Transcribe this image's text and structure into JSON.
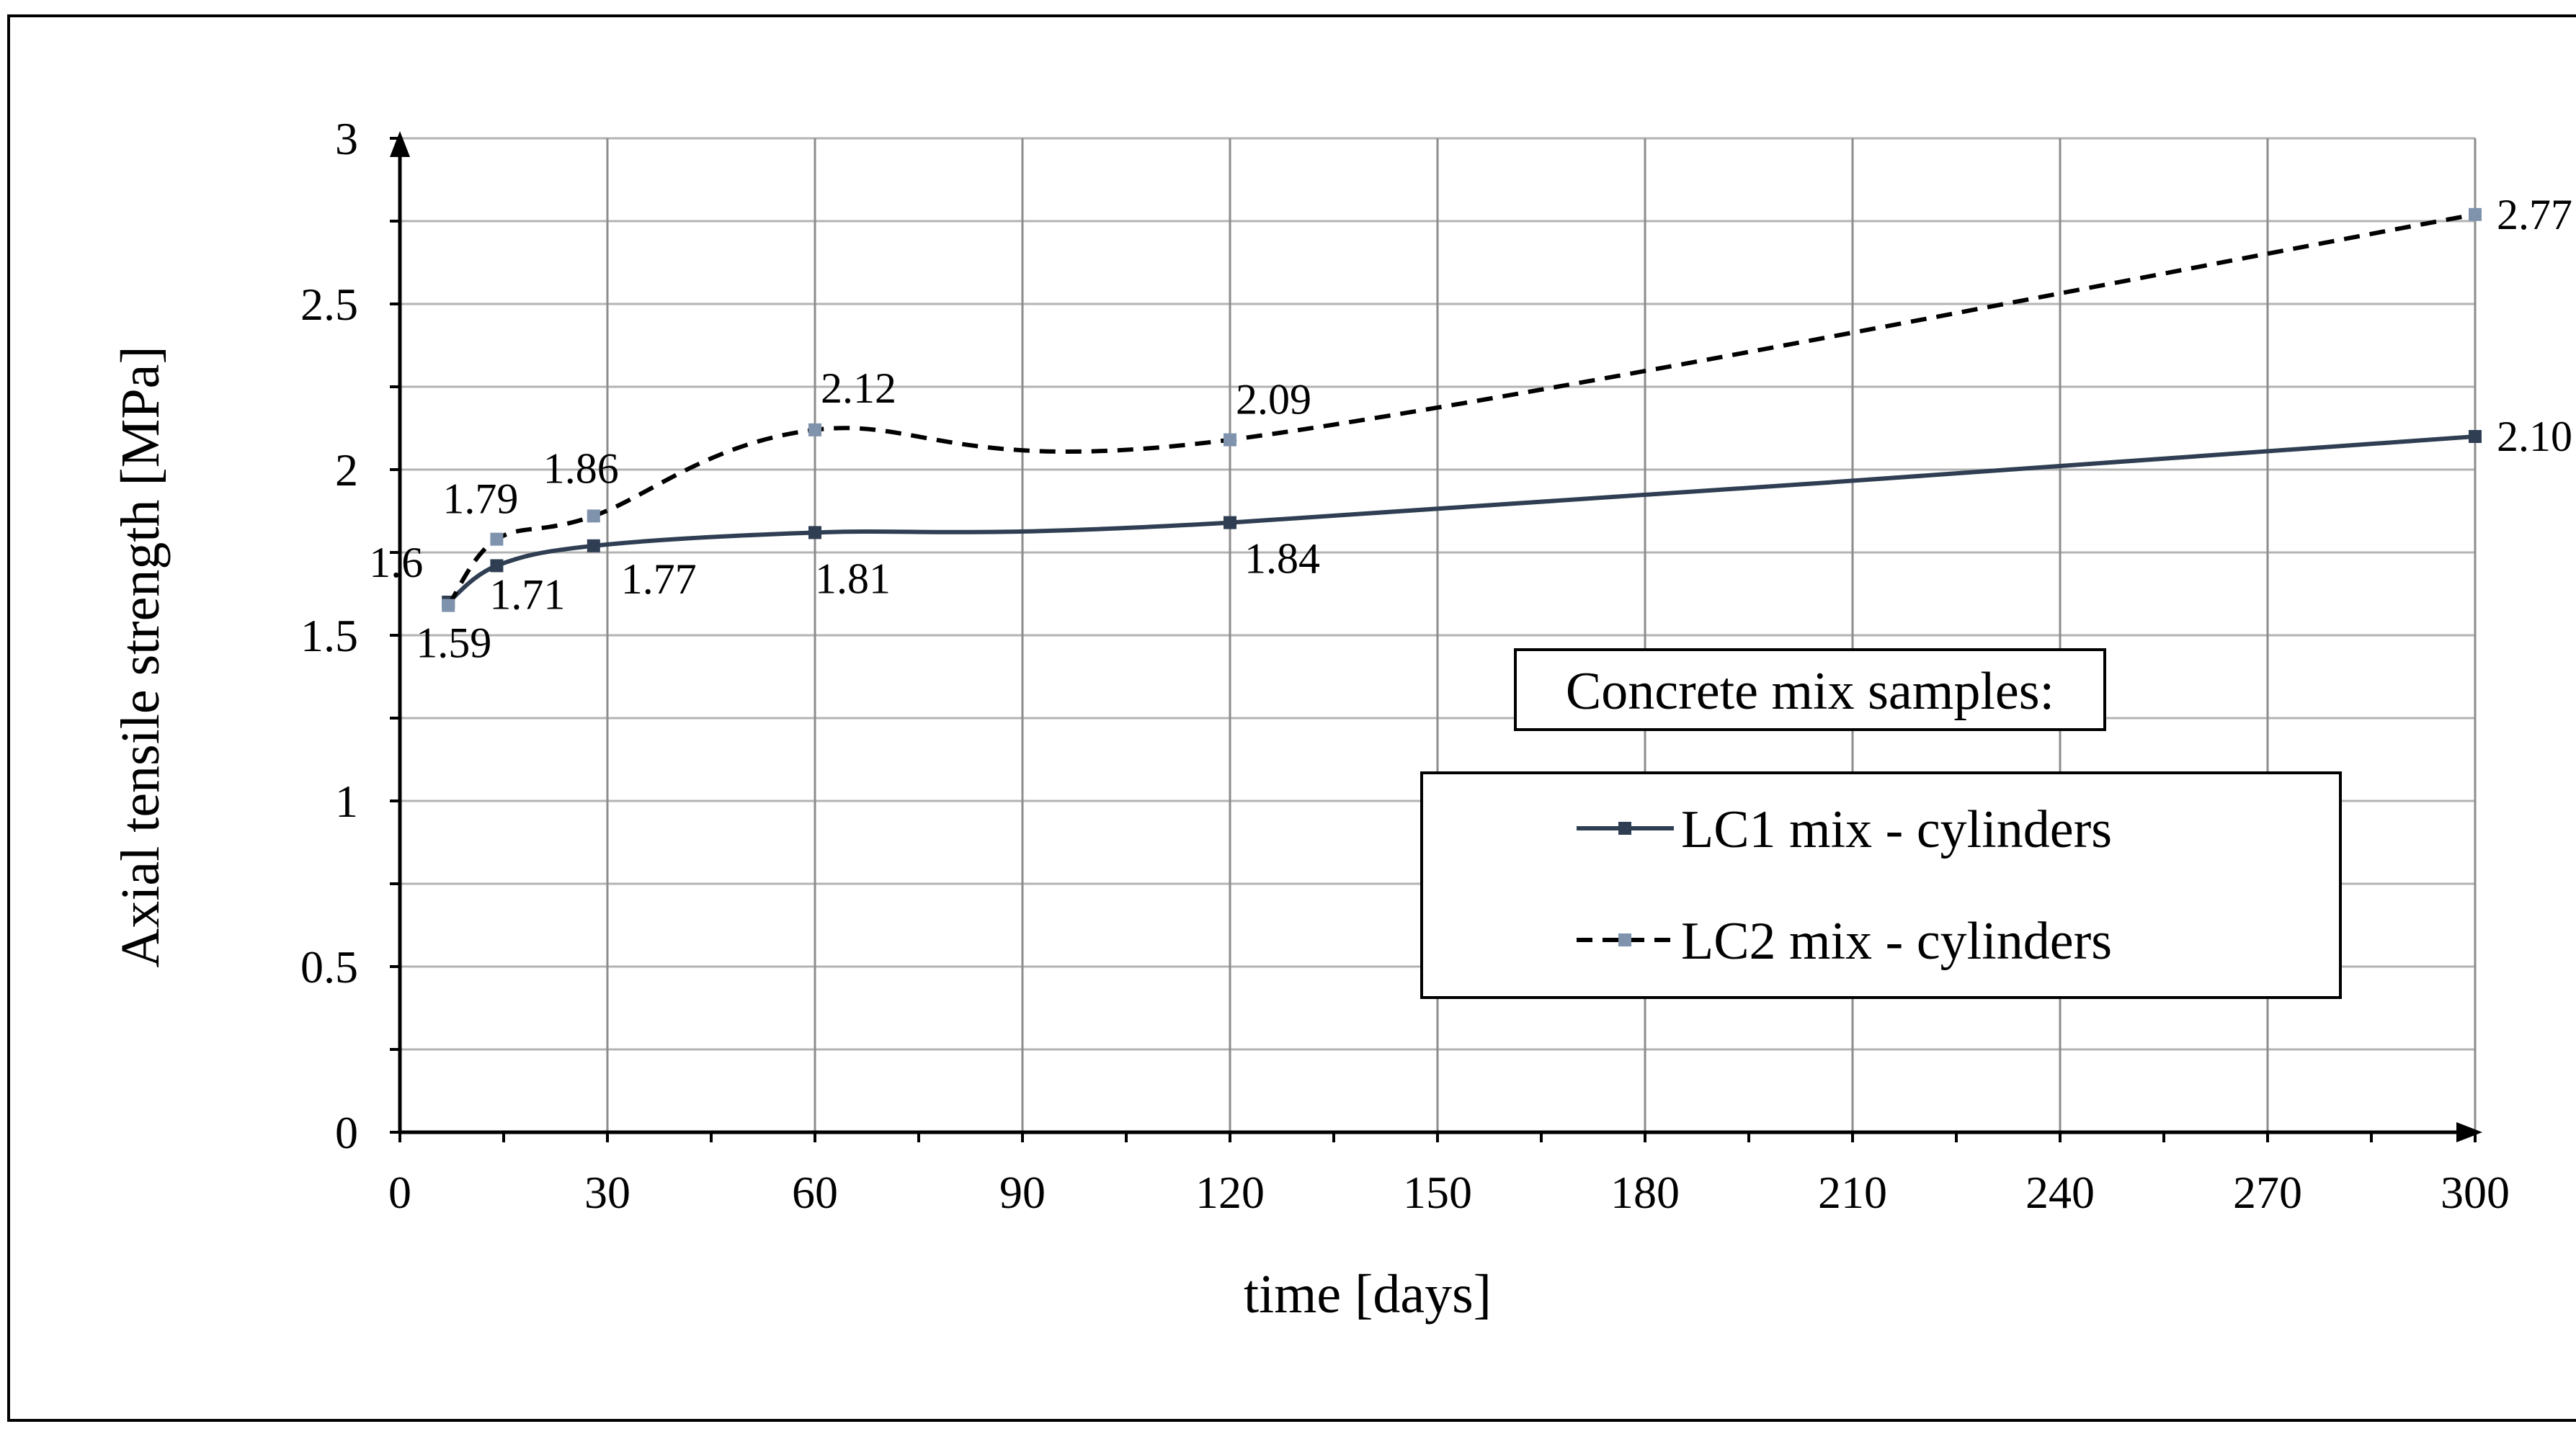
{
  "chart_data": {
    "type": "line",
    "title": "",
    "xlabel": "time [days]",
    "ylabel": "Axial tensile strength [MPa]",
    "xlim": [
      0,
      300
    ],
    "ylim": [
      0,
      3
    ],
    "x_ticks": [
      0,
      30,
      60,
      90,
      120,
      150,
      180,
      210,
      240,
      270,
      300
    ],
    "x_tick_labels": [
      "0",
      "30",
      "60",
      "90",
      "120",
      "150",
      "180",
      "210",
      "240",
      "270",
      "300"
    ],
    "y_ticks": [
      0,
      0.5,
      1,
      1.5,
      2,
      2.5,
      3
    ],
    "y_tick_labels": [
      "0",
      "0.5",
      "1",
      "1.5",
      "2",
      "2.5",
      "3"
    ],
    "grid": true,
    "legend_title": "Concrete mix samples:",
    "legend_position": "lower-right",
    "series": [
      {
        "name": "LC1 mix - cylinders",
        "style": "solid",
        "color": "#2f3e52",
        "marker_color": "#2f3e52",
        "x": [
          7,
          14,
          28,
          60,
          120,
          300
        ],
        "values": [
          1.6,
          1.71,
          1.77,
          1.81,
          1.84,
          2.1
        ],
        "labels": [
          "1.6",
          "1.71",
          "1.77",
          "1.81",
          "1.84",
          "2.10"
        ]
      },
      {
        "name": "LC2 mix - cylinders",
        "style": "dashed",
        "color": "#000000",
        "marker_color": "#7f93ad",
        "x": [
          7,
          14,
          28,
          60,
          120,
          300
        ],
        "values": [
          1.59,
          1.79,
          1.86,
          2.12,
          2.09,
          2.77
        ],
        "labels": [
          "1.59",
          "1.79",
          "1.86",
          "2.12",
          "2.09",
          "2.77"
        ]
      }
    ]
  }
}
